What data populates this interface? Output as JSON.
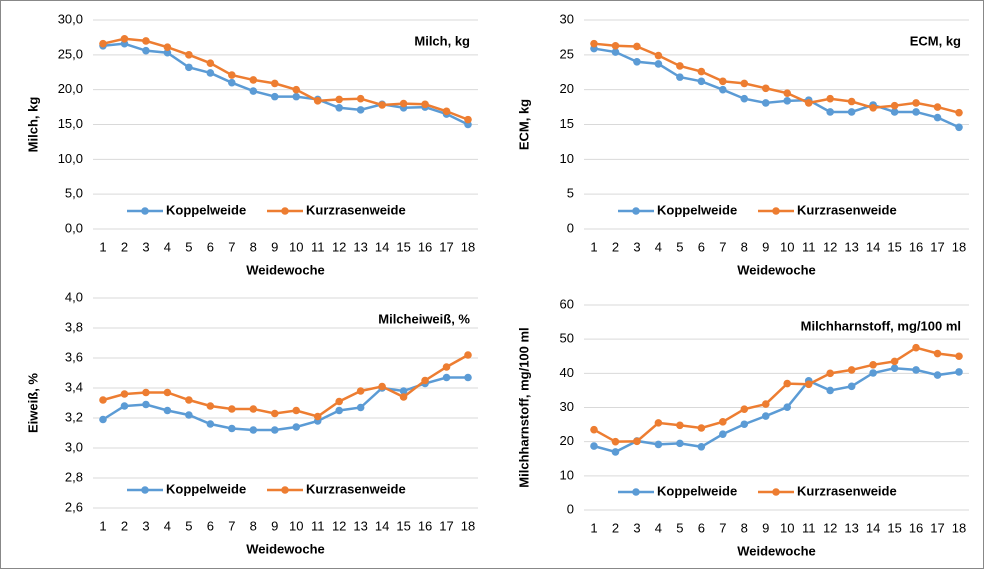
{
  "chart_data": [
    {
      "type": "line",
      "title": "Milch, kg",
      "x_label": "Weidewoche",
      "y_label": "Milch, kg",
      "categories": [
        "1",
        "2",
        "3",
        "4",
        "5",
        "6",
        "7",
        "8",
        "9",
        "10",
        "11",
        "12",
        "13",
        "14",
        "15",
        "16",
        "17",
        "18"
      ],
      "series": [
        {
          "name": "Koppelweide",
          "color": "#5b9bd5",
          "values": [
            26.3,
            26.6,
            25.6,
            25.3,
            23.2,
            22.4,
            21.0,
            19.8,
            19.0,
            19.0,
            18.6,
            17.4,
            17.1,
            17.9,
            17.4,
            17.5,
            16.5,
            15.0
          ]
        },
        {
          "name": "Kurzrasenweide",
          "color": "#ed7d31",
          "values": [
            26.6,
            27.3,
            27.0,
            26.1,
            25.0,
            23.8,
            22.1,
            21.4,
            20.9,
            20.0,
            18.4,
            18.6,
            18.7,
            17.8,
            18.0,
            17.9,
            16.9,
            15.7
          ]
        }
      ],
      "ylim": [
        0,
        30
      ],
      "yticks": [
        {
          "value": 0,
          "label": "0,0"
        },
        {
          "value": 5,
          "label": "5,0"
        },
        {
          "value": 10,
          "label": "10,0"
        },
        {
          "value": 15,
          "label": "15,0"
        },
        {
          "value": 20,
          "label": "20,0"
        },
        {
          "value": 25,
          "label": "25,0"
        },
        {
          "value": 30,
          "label": "30,0"
        }
      ],
      "grid": true
    },
    {
      "type": "line",
      "title": "ECM, kg",
      "x_label": "Weidewoche",
      "y_label": "ECM, kg",
      "categories": [
        "1",
        "2",
        "3",
        "4",
        "5",
        "6",
        "7",
        "8",
        "9",
        "10",
        "11",
        "12",
        "13",
        "14",
        "15",
        "16",
        "17",
        "18"
      ],
      "series": [
        {
          "name": "Koppelweide",
          "color": "#5b9bd5",
          "values": [
            25.9,
            25.4,
            24.0,
            23.7,
            21.8,
            21.2,
            20.0,
            18.7,
            18.1,
            18.4,
            18.5,
            16.8,
            16.8,
            17.8,
            16.8,
            16.8,
            16.0,
            14.6
          ]
        },
        {
          "name": "Kurzrasenweide",
          "color": "#ed7d31",
          "values": [
            26.6,
            26.3,
            26.2,
            24.9,
            23.4,
            22.6,
            21.2,
            20.9,
            20.2,
            19.5,
            18.1,
            18.7,
            18.3,
            17.4,
            17.7,
            18.1,
            17.5,
            16.7
          ]
        }
      ],
      "ylim": [
        0,
        30
      ],
      "yticks": [
        0,
        5,
        10,
        15,
        20,
        25,
        30
      ],
      "grid": true
    },
    {
      "type": "line",
      "title": "Milcheiweiß, %",
      "x_label": "Weidewoche",
      "y_label": "Eiweiß, %",
      "categories": [
        "1",
        "2",
        "3",
        "4",
        "5",
        "6",
        "7",
        "8",
        "9",
        "10",
        "11",
        "12",
        "13",
        "14",
        "15",
        "16",
        "17",
        "18"
      ],
      "series": [
        {
          "name": "Koppelweide",
          "color": "#5b9bd5",
          "values": [
            3.19,
            3.28,
            3.29,
            3.25,
            3.22,
            3.16,
            3.13,
            3.12,
            3.12,
            3.14,
            3.18,
            3.25,
            3.27,
            3.4,
            3.38,
            3.43,
            3.47,
            3.47
          ]
        },
        {
          "name": "Kurzrasenweide",
          "color": "#ed7d31",
          "values": [
            3.32,
            3.36,
            3.37,
            3.37,
            3.32,
            3.28,
            3.26,
            3.26,
            3.23,
            3.25,
            3.21,
            3.31,
            3.38,
            3.41,
            3.34,
            3.45,
            3.54,
            3.62
          ]
        }
      ],
      "ylim": [
        2.6,
        4.0
      ],
      "yticks": [
        {
          "value": 2.6,
          "label": "2,6"
        },
        {
          "value": 2.8,
          "label": "2,8"
        },
        {
          "value": 3.0,
          "label": "3,0"
        },
        {
          "value": 3.2,
          "label": "3,2"
        },
        {
          "value": 3.4,
          "label": "3,4"
        },
        {
          "value": 3.6,
          "label": "3,6"
        },
        {
          "value": 3.8,
          "label": "3,8"
        },
        {
          "value": 4.0,
          "label": "4,0"
        }
      ],
      "grid": true
    },
    {
      "type": "line",
      "title": "Milchharnstoff, mg/100 ml",
      "x_label": "Weidewoche",
      "y_label": "Milchharnstoff, mg/100 ml",
      "categories": [
        "1",
        "2",
        "3",
        "4",
        "5",
        "6",
        "7",
        "8",
        "9",
        "10",
        "11",
        "12",
        "13",
        "14",
        "15",
        "16",
        "17",
        "18"
      ],
      "series": [
        {
          "name": "Koppelweide",
          "color": "#5b9bd5",
          "values": [
            18.7,
            17.0,
            20.2,
            19.2,
            19.5,
            18.5,
            22.2,
            25.1,
            27.5,
            30.1,
            37.8,
            35.0,
            36.2,
            40.1,
            41.5,
            41.0,
            39.5,
            40.4
          ]
        },
        {
          "name": "Kurzrasenweide",
          "color": "#ed7d31",
          "values": [
            23.5,
            20.0,
            20.1,
            25.5,
            24.8,
            24.0,
            25.8,
            29.5,
            31.0,
            37.0,
            36.8,
            40.0,
            41.0,
            42.5,
            43.5,
            47.5,
            45.8,
            45.0
          ]
        }
      ],
      "ylim": [
        0,
        60
      ],
      "yticks": [
        0,
        10,
        20,
        30,
        40,
        50,
        60
      ],
      "grid": true
    }
  ]
}
